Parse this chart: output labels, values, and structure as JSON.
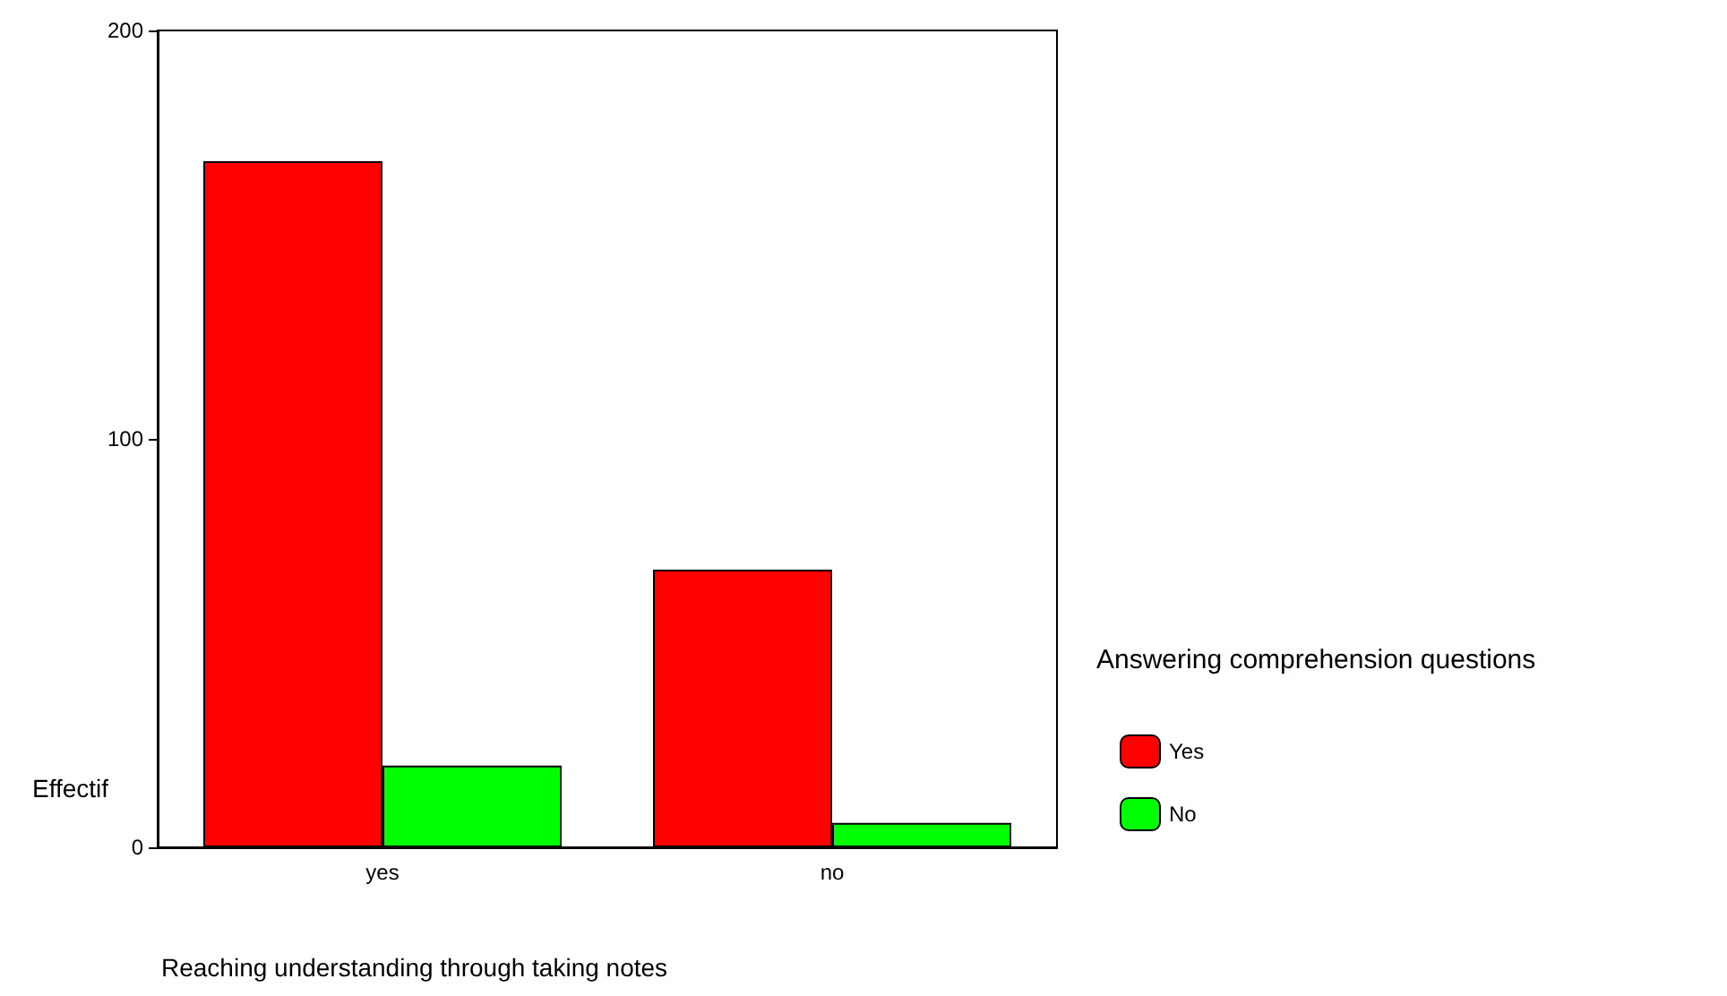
{
  "chart_data": {
    "type": "bar",
    "xlabel": "Reaching understanding through taking notes",
    "ylabel": "Effectif",
    "legend_title": "Answering comprehension questions",
    "categories": [
      "yes",
      "no"
    ],
    "series": [
      {
        "name": "Yes",
        "color": "#ff0000",
        "values": [
          168,
          68
        ]
      },
      {
        "name": "No",
        "color": "#00ff00",
        "values": [
          20,
          6
        ]
      }
    ],
    "ylim": [
      0,
      200
    ],
    "yticks": [
      0,
      100,
      200
    ],
    "grid": false,
    "legend": "right"
  }
}
